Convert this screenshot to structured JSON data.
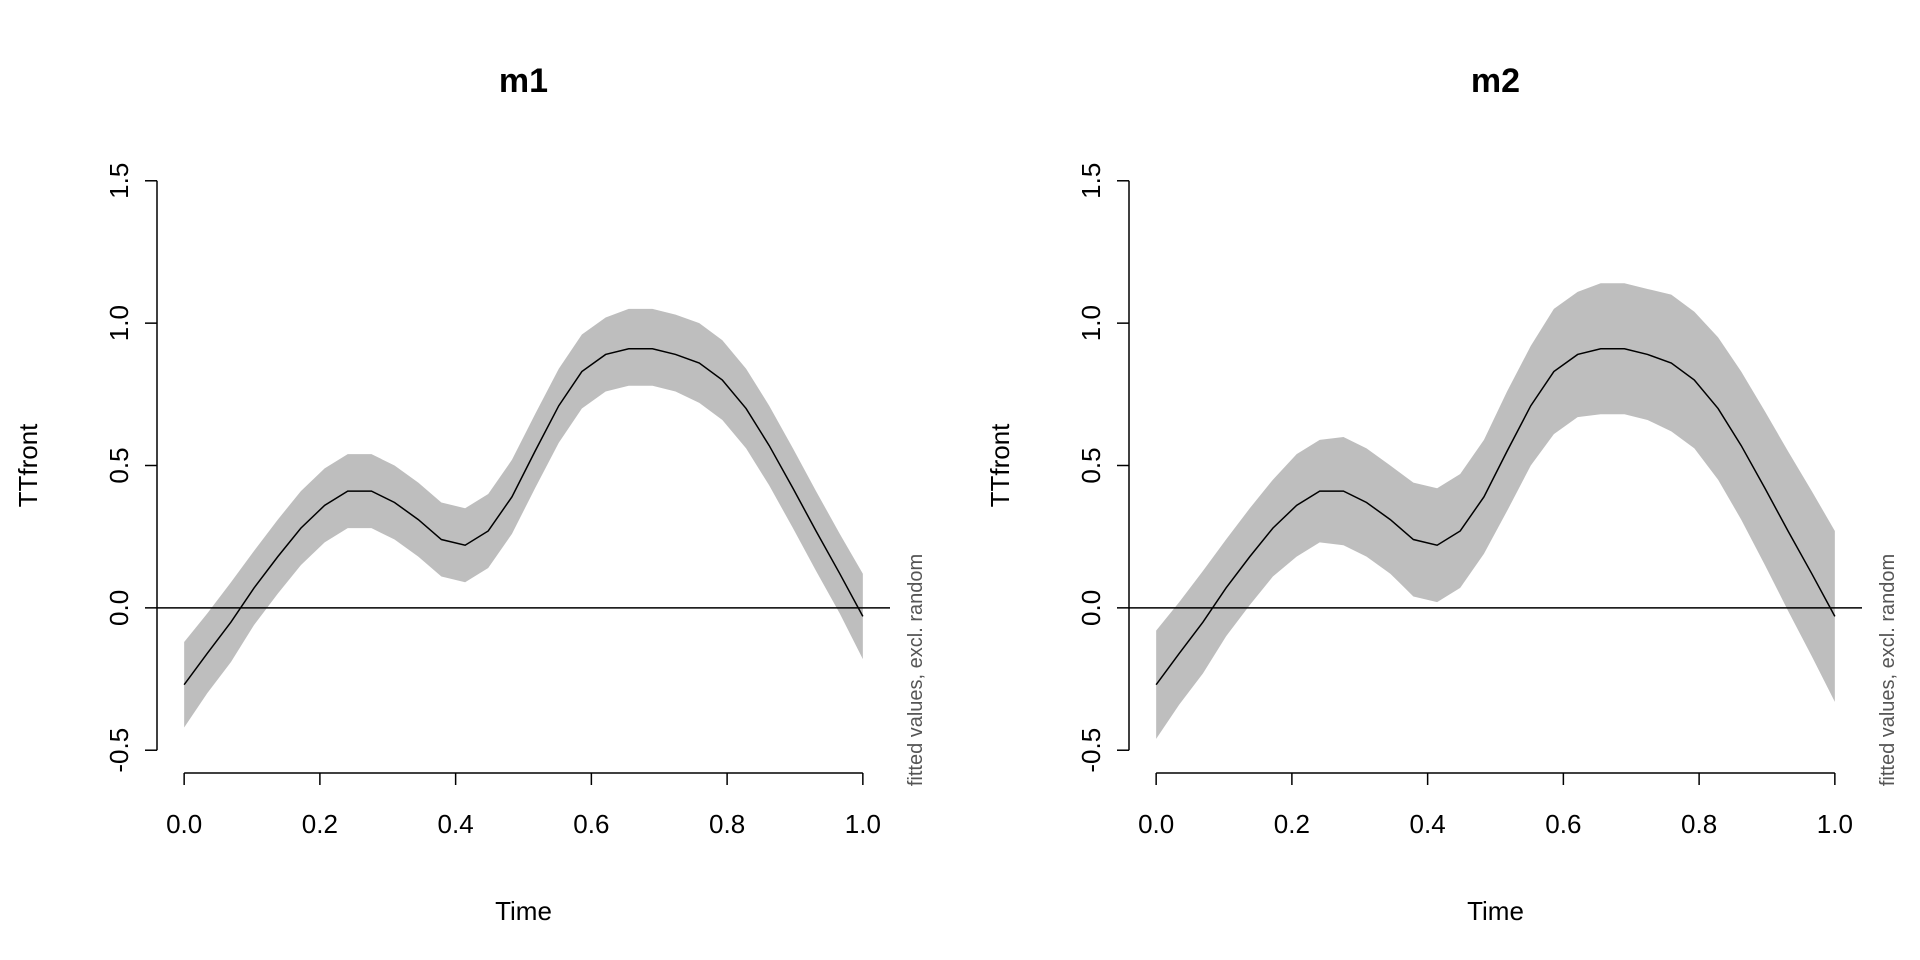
{
  "chart_data": [
    {
      "type": "line",
      "title": "m1",
      "xlabel": "Time",
      "ylabel": "TTfront",
      "note": "fitted values, excl. random",
      "x": [
        0,
        0.034,
        0.069,
        0.103,
        0.138,
        0.172,
        0.207,
        0.241,
        0.276,
        0.31,
        0.345,
        0.379,
        0.414,
        0.448,
        0.483,
        0.517,
        0.552,
        0.586,
        0.621,
        0.655,
        0.69,
        0.724,
        0.759,
        0.793,
        0.828,
        0.862,
        0.897,
        0.931,
        0.966,
        1
      ],
      "values": [
        -0.27,
        -0.16,
        -0.05,
        0.07,
        0.18,
        0.28,
        0.36,
        0.41,
        0.41,
        0.37,
        0.31,
        0.24,
        0.22,
        0.27,
        0.39,
        0.55,
        0.71,
        0.83,
        0.89,
        0.91,
        0.91,
        0.89,
        0.86,
        0.8,
        0.7,
        0.57,
        0.42,
        0.27,
        0.12,
        -0.03
      ],
      "lower": [
        -0.42,
        -0.3,
        -0.19,
        -0.06,
        0.05,
        0.15,
        0.23,
        0.28,
        0.28,
        0.24,
        0.18,
        0.11,
        0.09,
        0.14,
        0.26,
        0.42,
        0.58,
        0.7,
        0.76,
        0.78,
        0.78,
        0.76,
        0.72,
        0.66,
        0.56,
        0.43,
        0.28,
        0.13,
        -0.02,
        -0.18
      ],
      "upper": [
        -0.12,
        -0.02,
        0.09,
        0.2,
        0.31,
        0.41,
        0.49,
        0.54,
        0.54,
        0.5,
        0.44,
        0.37,
        0.35,
        0.4,
        0.52,
        0.68,
        0.84,
        0.96,
        1.02,
        1.05,
        1.05,
        1.03,
        1.0,
        0.94,
        0.84,
        0.71,
        0.56,
        0.41,
        0.26,
        0.12
      ],
      "color": "#000000",
      "band_color": "#bebebe",
      "hline": 0,
      "xlim": [
        -0.04,
        1.04
      ],
      "ylim": [
        -0.58,
        1.58
      ],
      "xticks": [
        {
          "value": 0,
          "label": "0.0"
        },
        0.2,
        0.4,
        0.6,
        0.8,
        {
          "value": 1,
          "label": "1.0"
        }
      ],
      "yticks": [
        -0.5,
        {
          "value": 0,
          "label": "0.0"
        },
        0.5,
        {
          "value": 1,
          "label": "1.0"
        },
        1.5
      ]
    },
    {
      "type": "line",
      "title": "m2",
      "xlabel": "Time",
      "ylabel": "TTfront",
      "note": "fitted values, excl. random",
      "x": [
        0,
        0.034,
        0.069,
        0.103,
        0.138,
        0.172,
        0.207,
        0.241,
        0.276,
        0.31,
        0.345,
        0.379,
        0.414,
        0.448,
        0.483,
        0.517,
        0.552,
        0.586,
        0.621,
        0.655,
        0.69,
        0.724,
        0.759,
        0.793,
        0.828,
        0.862,
        0.897,
        0.931,
        0.966,
        1
      ],
      "values": [
        -0.27,
        -0.16,
        -0.05,
        0.07,
        0.18,
        0.28,
        0.36,
        0.41,
        0.41,
        0.37,
        0.31,
        0.24,
        0.22,
        0.27,
        0.39,
        0.55,
        0.71,
        0.83,
        0.89,
        0.91,
        0.91,
        0.89,
        0.86,
        0.8,
        0.7,
        0.57,
        0.42,
        0.27,
        0.12,
        -0.03
      ],
      "lower": [
        -0.46,
        -0.34,
        -0.23,
        -0.1,
        0.01,
        0.11,
        0.18,
        0.23,
        0.22,
        0.18,
        0.12,
        0.04,
        0.02,
        0.07,
        0.19,
        0.34,
        0.5,
        0.61,
        0.67,
        0.68,
        0.68,
        0.66,
        0.62,
        0.56,
        0.45,
        0.31,
        0.15,
        -0.01,
        -0.17,
        -0.33
      ],
      "upper": [
        -0.08,
        0.02,
        0.13,
        0.24,
        0.35,
        0.45,
        0.54,
        0.59,
        0.6,
        0.56,
        0.5,
        0.44,
        0.42,
        0.47,
        0.59,
        0.76,
        0.92,
        1.05,
        1.11,
        1.14,
        1.14,
        1.12,
        1.1,
        1.04,
        0.95,
        0.83,
        0.69,
        0.55,
        0.41,
        0.27
      ],
      "color": "#000000",
      "band_color": "#bebebe",
      "hline": 0,
      "xlim": [
        -0.04,
        1.04
      ],
      "ylim": [
        -0.58,
        1.58
      ],
      "xticks": [
        {
          "value": 0,
          "label": "0.0"
        },
        0.2,
        0.4,
        0.6,
        0.8,
        {
          "value": 1,
          "label": "1.0"
        }
      ],
      "yticks": [
        -0.5,
        {
          "value": 0,
          "label": "0.0"
        },
        0.5,
        {
          "value": 1,
          "label": "1.0"
        },
        1.5
      ]
    }
  ]
}
